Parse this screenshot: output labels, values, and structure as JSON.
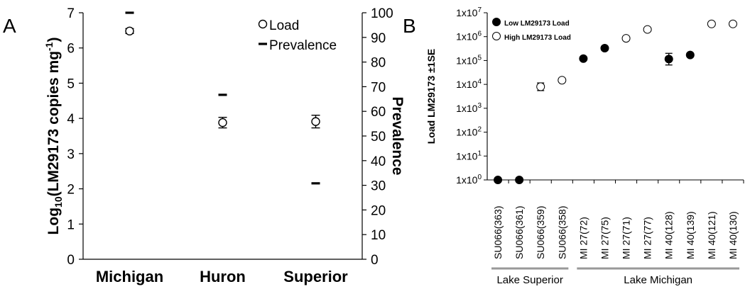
{
  "chart_data": [
    {
      "panel_label": "A",
      "type": "scatter",
      "categories": [
        "Michigan",
        "Huron",
        "Superior"
      ],
      "ylabel_left": "Log10(LM29173 copies mg-1)",
      "ylabel_left_parts": [
        "Log",
        "10",
        "(LM29173 copies mg",
        "-1",
        ")"
      ],
      "ylabel_right": "Prevalence",
      "ylim_left": [
        0,
        7
      ],
      "ylim_right": [
        0,
        100
      ],
      "yticks_left": [
        "0",
        "1",
        "2",
        "3",
        "4",
        "5",
        "6",
        "7"
      ],
      "yticks_right": [
        "0",
        "10",
        "20",
        "30",
        "40",
        "50",
        "60",
        "70",
        "80",
        "90",
        "100"
      ],
      "legend": {
        "placement": "top-right",
        "load_label": "Load",
        "prevalence_label": "Prevalence"
      },
      "series": [
        {
          "name": "Load",
          "marker": "open-circle",
          "axis": "left",
          "values": [
            6.48,
            3.88,
            3.91
          ],
          "se": [
            0.07,
            0.15,
            0.18
          ]
        },
        {
          "name": "Prevalence",
          "marker": "dash",
          "axis": "right",
          "values": [
            100,
            66.7,
            30.8
          ]
        }
      ]
    },
    {
      "panel_label": "B",
      "type": "scatter",
      "ylabel": "Load LM29173 ±1SE",
      "y_scale": "log",
      "ylim": [
        1,
        10000000
      ],
      "ytick_bases": [
        "1x10",
        "1x10",
        "1x10",
        "1x10",
        "1x10",
        "1x10",
        "1x10",
        "1x10"
      ],
      "ytick_exps": [
        "0",
        "1",
        "2",
        "3",
        "4",
        "5",
        "6",
        "7"
      ],
      "categories": [
        "SU066(363)",
        "SU066(361)",
        "SU066(359)",
        "SU066(358)",
        "MI 27(72)",
        "MI 27(75)",
        "MI 27(71)",
        "MI 27(77)",
        "MI 40(128)",
        "MI 40(139)",
        "MI 40(121)",
        "MI 40(130)"
      ],
      "groups": [
        {
          "label": "Lake Superior",
          "start": 0,
          "end": 3
        },
        {
          "label": "Lake Michigan",
          "start": 4,
          "end": 11
        }
      ],
      "legend": {
        "placement": "top-left",
        "low_label": "Low LM29173 Load",
        "high_label": "High LM29173 Load"
      },
      "points": [
        {
          "value": 1,
          "filled": true,
          "se_low": null,
          "se_high": null
        },
        {
          "value": 1,
          "filled": true,
          "se_low": null,
          "se_high": null
        },
        {
          "value": 8000,
          "filled": false,
          "se_low": 5500,
          "se_high": 11500
        },
        {
          "value": 15000,
          "filled": false,
          "se_low": null,
          "se_high": null
        },
        {
          "value": 120000,
          "filled": true,
          "se_low": null,
          "se_high": null
        },
        {
          "value": 330000,
          "filled": true,
          "se_low": null,
          "se_high": null
        },
        {
          "value": 850000,
          "filled": false,
          "se_low": null,
          "se_high": null
        },
        {
          "value": 2000000,
          "filled": false,
          "se_low": null,
          "se_high": null
        },
        {
          "value": 115000,
          "filled": true,
          "se_low": 65000,
          "se_high": 200000
        },
        {
          "value": 170000,
          "filled": true,
          "se_low": null,
          "se_high": null
        },
        {
          "value": 3400000,
          "filled": false,
          "se_low": null,
          "se_high": null
        },
        {
          "value": 3400000,
          "filled": false,
          "se_low": null,
          "se_high": null
        }
      ]
    }
  ]
}
